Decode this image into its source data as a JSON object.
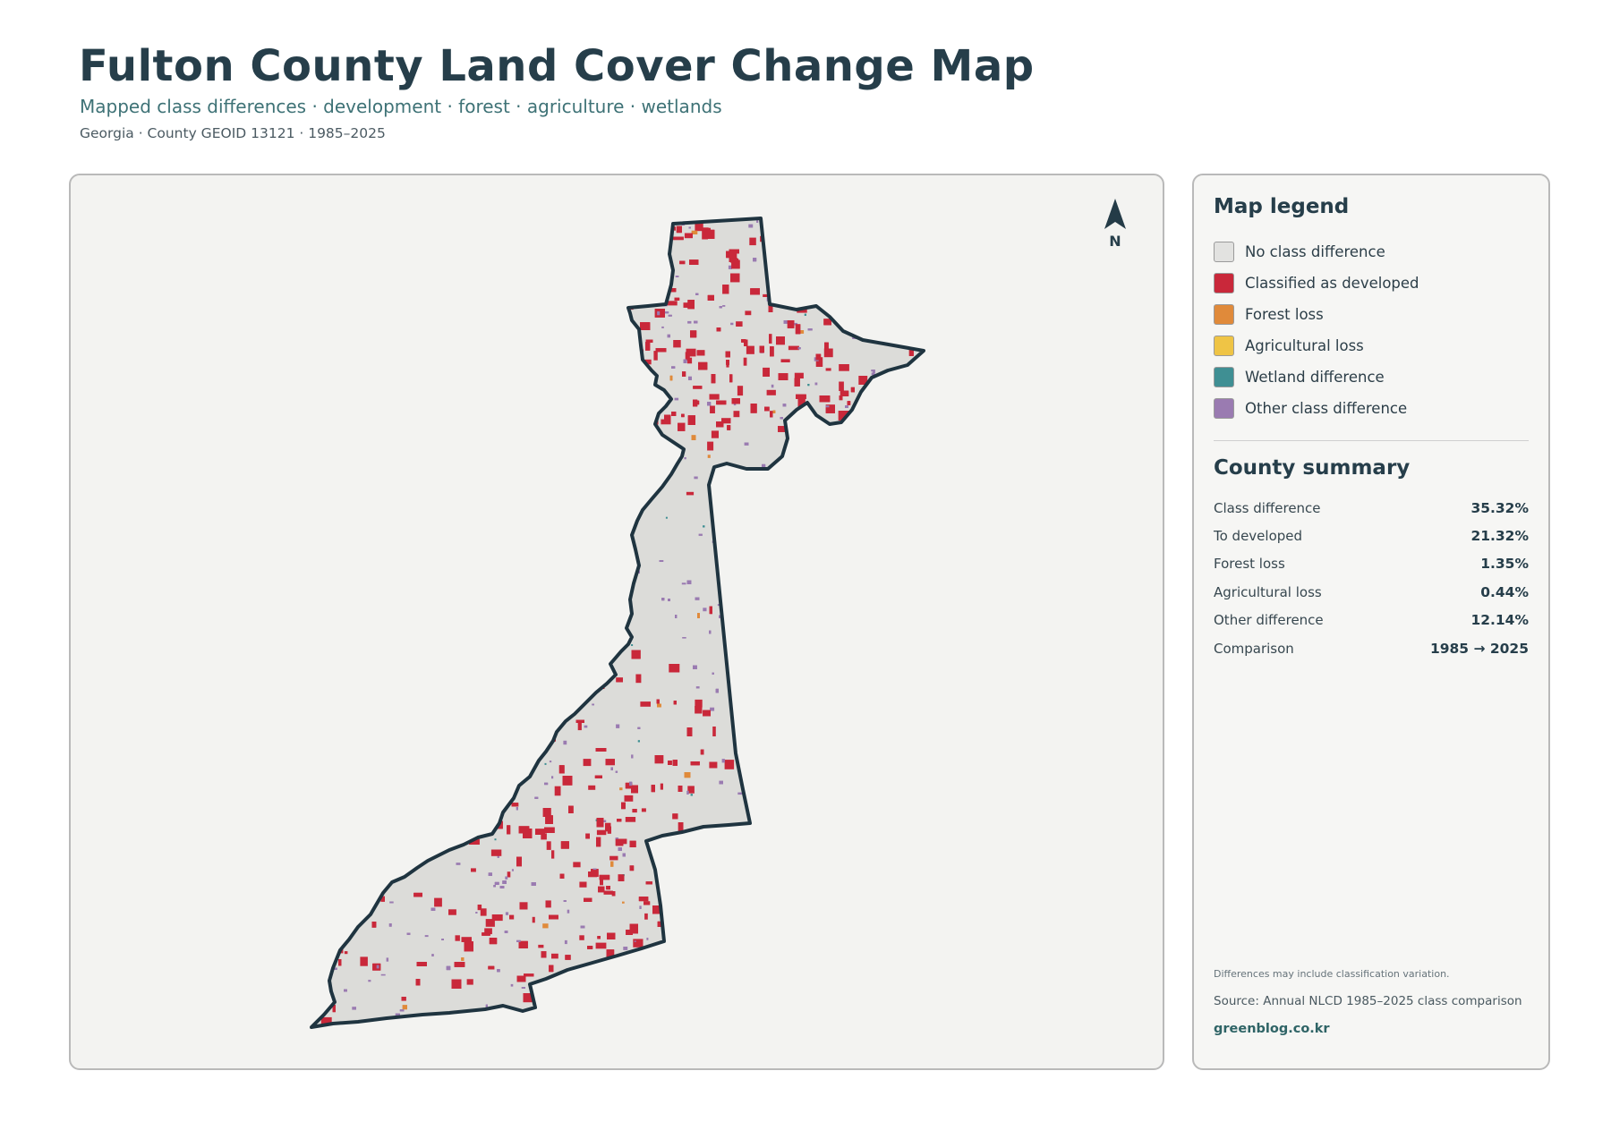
{
  "header": {
    "title": "Fulton County Land Cover Change Map",
    "subtitle": "Mapped class differences · development · forest · agriculture · wetlands",
    "meta": "Georgia · County GEOID 13121 · 1985–2025"
  },
  "map": {
    "north_label": "N",
    "boundary_color": "#1f3440",
    "fill_color": "#dcdcd9"
  },
  "legend": {
    "title": "Map legend",
    "items": [
      {
        "label": "No class difference",
        "color": "#e2e2e0"
      },
      {
        "label": "Classified as developed",
        "color": "#c9283a"
      },
      {
        "label": "Forest loss",
        "color": "#e08a3a"
      },
      {
        "label": "Agricultural loss",
        "color": "#efc445"
      },
      {
        "label": "Wetland difference",
        "color": "#3f8f93"
      },
      {
        "label": "Other class difference",
        "color": "#9a7bb1"
      }
    ]
  },
  "summary": {
    "title": "County summary",
    "rows": [
      {
        "label": "Class difference",
        "value": "35.32%"
      },
      {
        "label": "To developed",
        "value": "21.32%"
      },
      {
        "label": "Forest loss",
        "value": "1.35%"
      },
      {
        "label": "Agricultural loss",
        "value": "0.44%"
      },
      {
        "label": "Other difference",
        "value": "12.14%"
      },
      {
        "label": "Comparison",
        "value": "1985 → 2025"
      }
    ]
  },
  "footer": {
    "note": "Differences may include classification variation.",
    "source": "Source: Annual NLCD 1985–2025 class comparison",
    "site": "greenblog.co.kr"
  }
}
